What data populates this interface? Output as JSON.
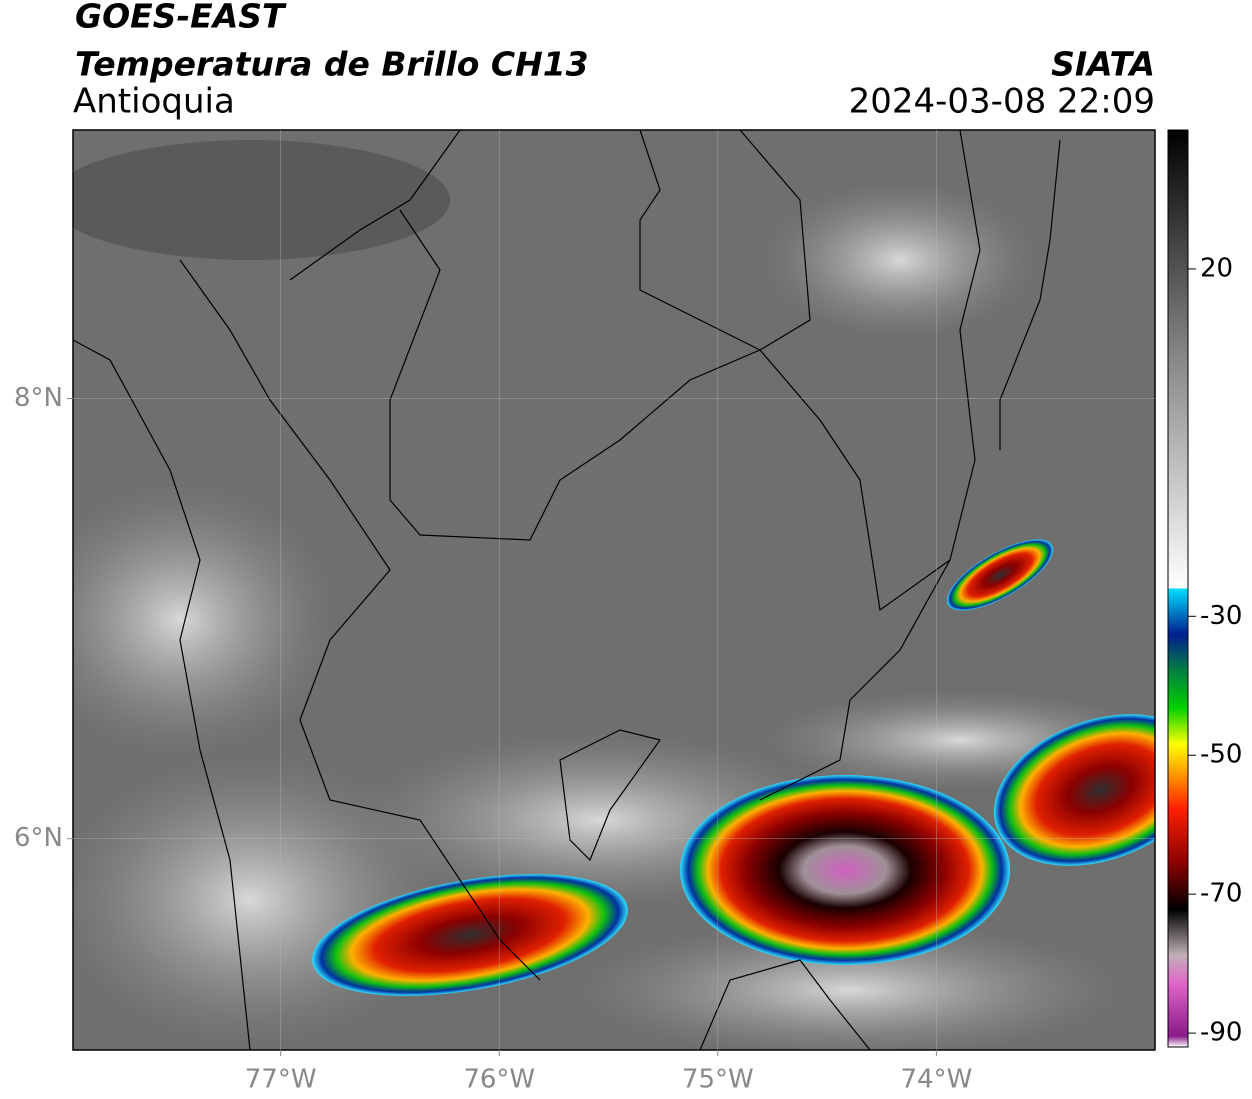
{
  "map": {
    "title": "GOES-EAST",
    "subtitle": "Temperatura de Brillo CH13",
    "region": "Antioquia",
    "source": "SIATA",
    "timestamp": "2024-03-08 22:09",
    "xlim": [
      -77.95,
      -73.0
    ],
    "ylim": [
      5.04,
      9.22
    ],
    "xticks": [
      {
        "value": -77,
        "label": "77°W"
      },
      {
        "value": -76,
        "label": "76°W"
      },
      {
        "value": -75,
        "label": "75°W"
      },
      {
        "value": -74,
        "label": "74°W"
      }
    ],
    "yticks": [
      {
        "value": 8,
        "label": "8°N"
      },
      {
        "value": 6,
        "label": "6°N"
      }
    ],
    "grid": true,
    "colorbar": {
      "lim": [
        -92,
        40
      ],
      "ticks": [
        20,
        -30,
        -50,
        -70,
        -90
      ]
    }
  }
}
